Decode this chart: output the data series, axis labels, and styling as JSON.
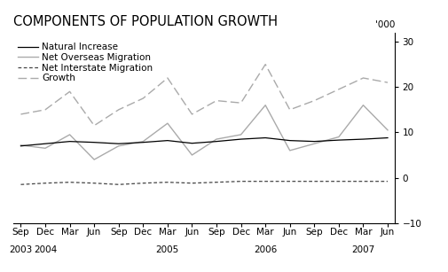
{
  "title": "COMPONENTS OF POPULATION GROWTH",
  "ylabel_top": "'000",
  "ylim": [
    -10,
    32
  ],
  "yticks": [
    -10,
    0,
    10,
    20,
    30
  ],
  "month_labels": [
    "Sep",
    "Dec",
    "Mar",
    "Jun",
    "Sep",
    "Dec",
    "Mar",
    "Jun",
    "Sep",
    "Dec",
    "Mar",
    "Jun",
    "Sep",
    "Dec",
    "Mar",
    "Jun"
  ],
  "year_label_indices": [
    0,
    1,
    6,
    10,
    14
  ],
  "year_labels": [
    "2003",
    "2004",
    "2005",
    "2006",
    "2007"
  ],
  "natural_increase": [
    7.0,
    7.5,
    8.0,
    7.8,
    7.5,
    7.8,
    8.2,
    7.6,
    8.0,
    8.5,
    8.8,
    8.2,
    8.0,
    8.3,
    8.5,
    8.8
  ],
  "net_overseas": [
    7.2,
    6.5,
    9.5,
    4.0,
    7.0,
    8.0,
    12.0,
    5.0,
    8.5,
    9.5,
    16.0,
    6.0,
    7.5,
    9.0,
    16.0,
    10.5
  ],
  "net_interstate": [
    -1.5,
    -1.2,
    -1.0,
    -1.2,
    -1.5,
    -1.2,
    -1.0,
    -1.2,
    -1.0,
    -0.8,
    -0.8,
    -0.8,
    -0.8,
    -0.8,
    -0.8,
    -0.8
  ],
  "growth": [
    14.0,
    15.0,
    19.0,
    11.5,
    15.0,
    17.5,
    22.0,
    14.0,
    17.0,
    16.5,
    25.0,
    15.0,
    17.0,
    19.5,
    22.0,
    21.0
  ],
  "color_natural": "#000000",
  "color_overseas": "#aaaaaa",
  "color_interstate": "#444444",
  "color_growth": "#aaaaaa",
  "background_color": "#ffffff",
  "title_fontsize": 10.5,
  "legend_fontsize": 7.5,
  "tick_fontsize": 7.5
}
